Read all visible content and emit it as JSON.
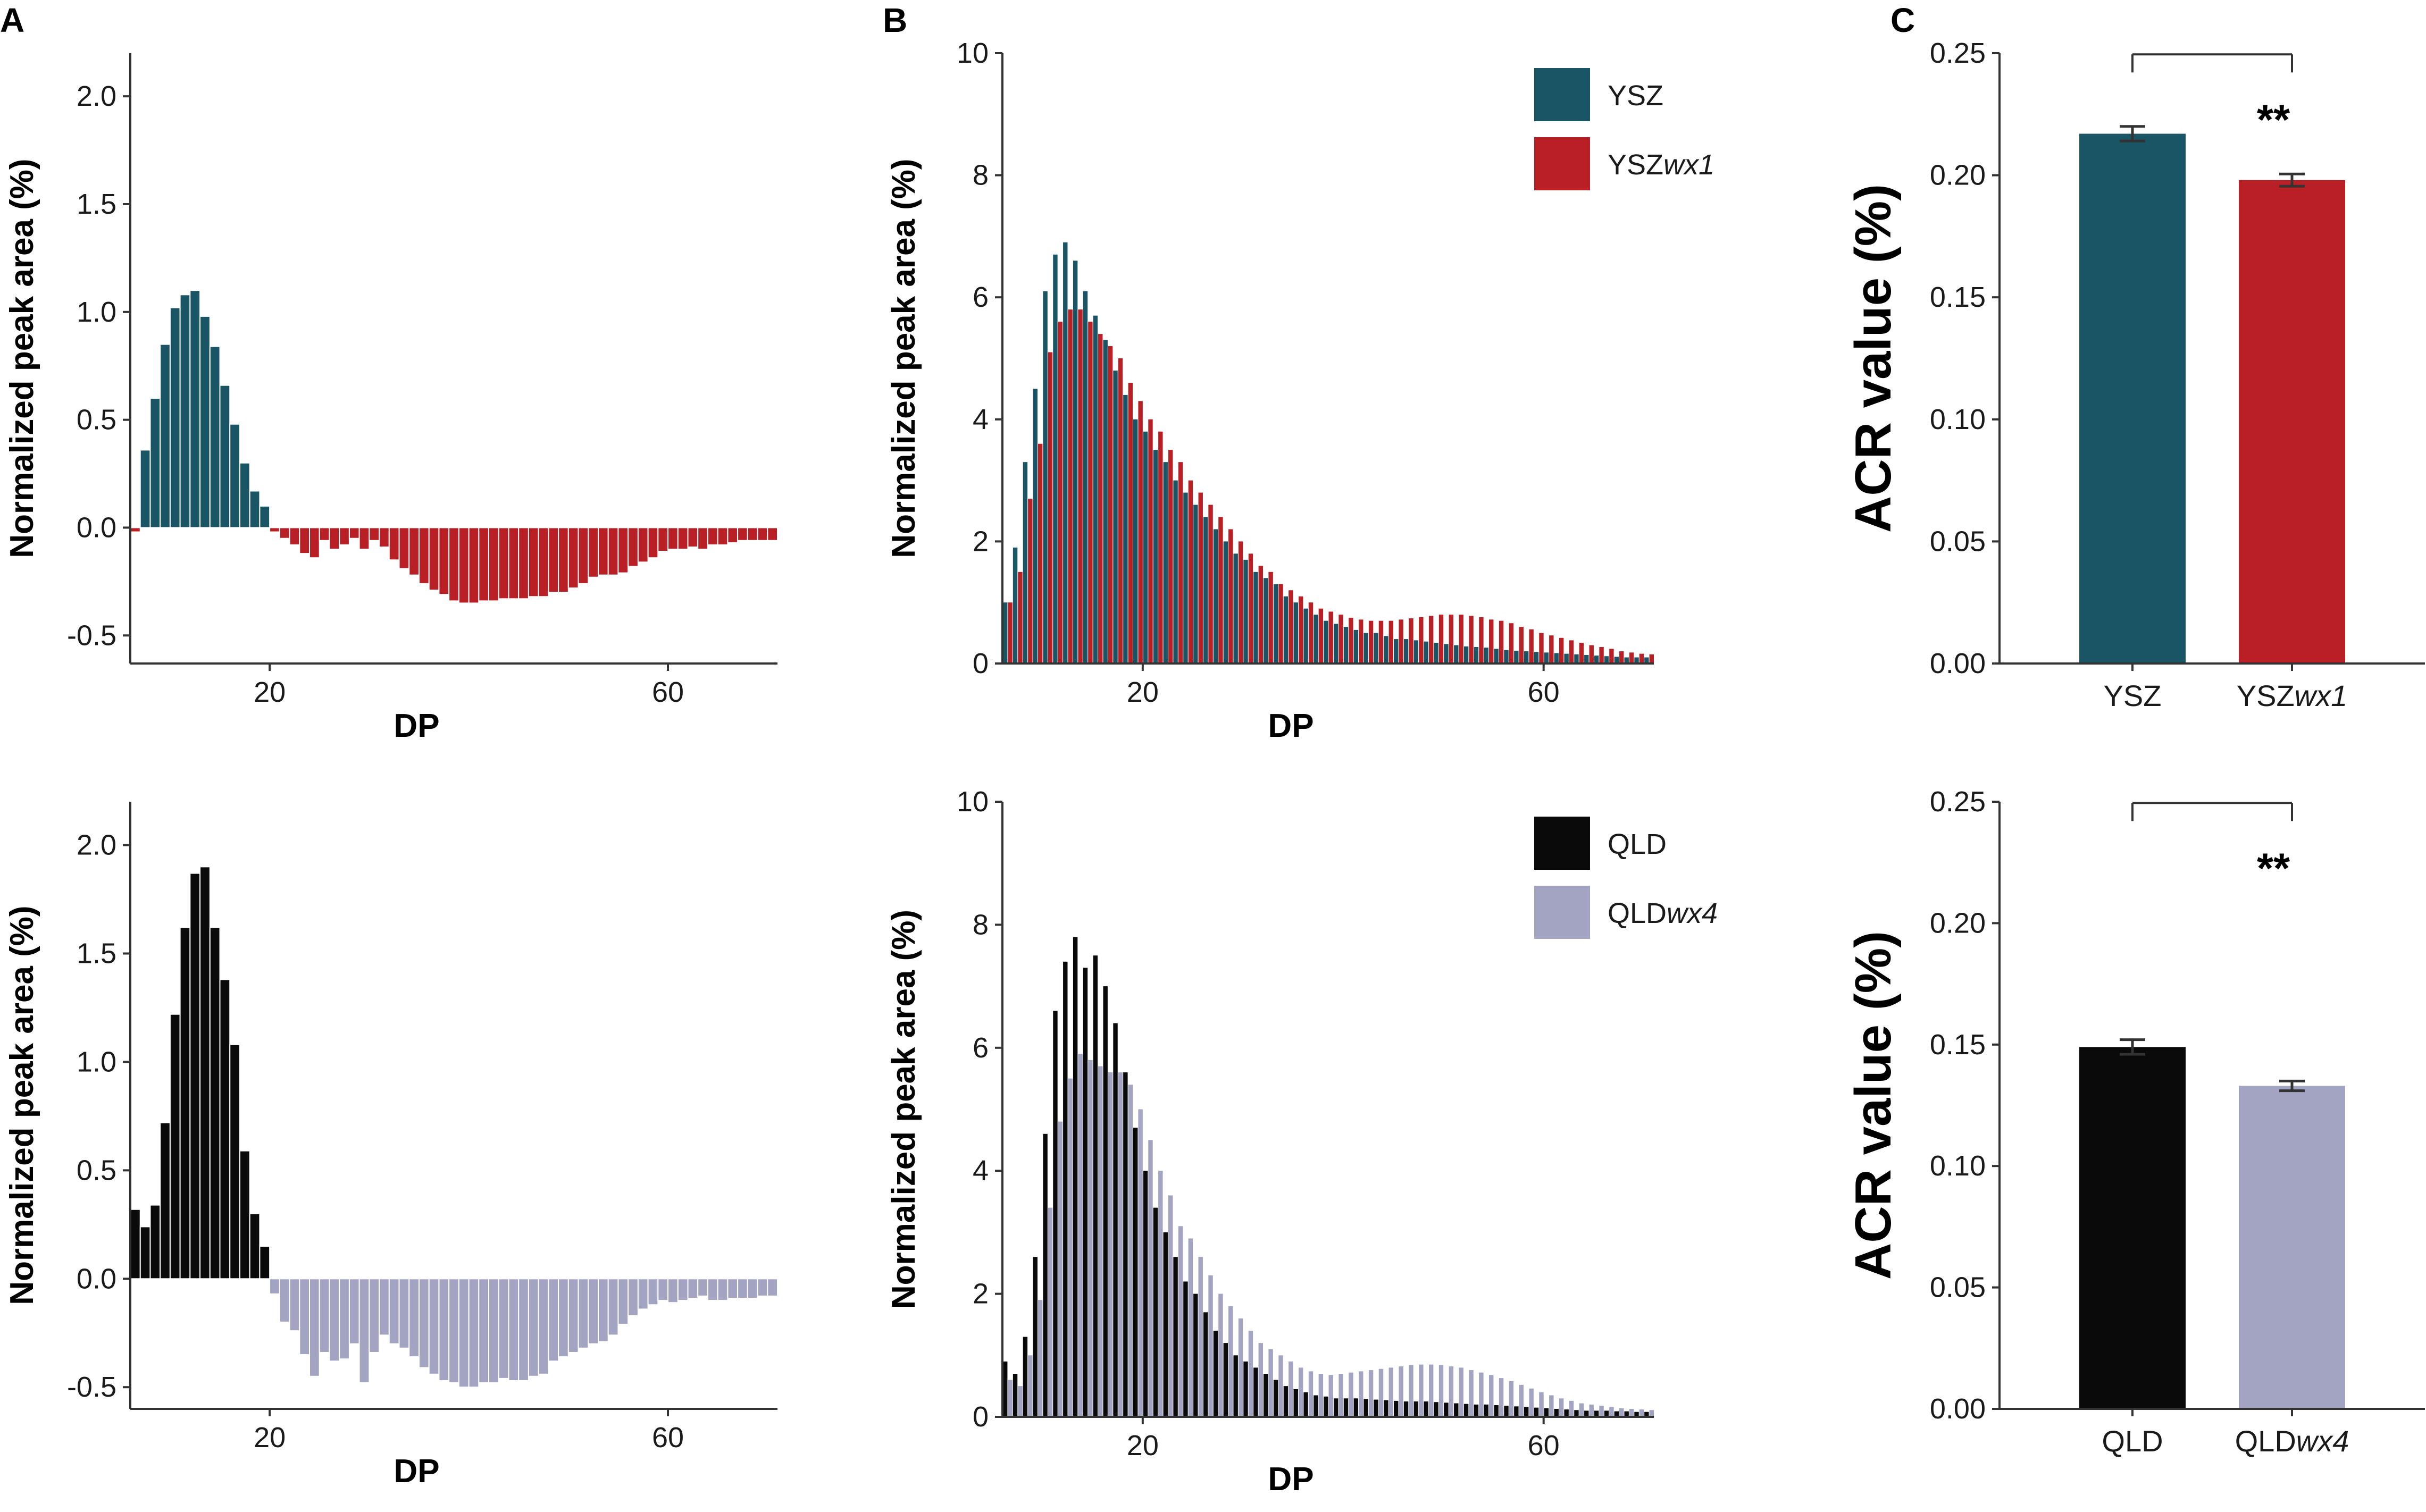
{
  "panels": {
    "a": "A",
    "b": "B",
    "c": "C"
  },
  "colors": {
    "ysz": "#1a5566",
    "yszwx1": "#b82025",
    "qld": "#0a0a0a",
    "qldwx4": "#a3a3c2",
    "axis": "#333333"
  },
  "chart_data": [
    {
      "id": "A-top",
      "type": "bar",
      "title": "",
      "xlabel": "DP",
      "ylabel": "Normalized peak area (%)",
      "xlim": [
        6,
        71
      ],
      "ylim": [
        -0.63,
        2.2
      ],
      "xticks": [
        "20",
        "60"
      ],
      "yticks": [
        "-0.5",
        "0.0",
        "0.5",
        "1.0",
        "1.5",
        "2.0"
      ],
      "x_start": 6,
      "values": [
        -0.02,
        0.36,
        0.6,
        0.85,
        1.02,
        1.08,
        1.1,
        0.98,
        0.84,
        0.66,
        0.48,
        0.3,
        0.17,
        0.1,
        -0.02,
        -0.05,
        -0.08,
        -0.12,
        -0.14,
        -0.06,
        -0.1,
        -0.08,
        -0.05,
        -0.1,
        -0.06,
        -0.09,
        -0.15,
        -0.19,
        -0.22,
        -0.26,
        -0.29,
        -0.31,
        -0.34,
        -0.35,
        -0.35,
        -0.34,
        -0.34,
        -0.33,
        -0.33,
        -0.33,
        -0.32,
        -0.32,
        -0.3,
        -0.3,
        -0.28,
        -0.26,
        -0.23,
        -0.22,
        -0.22,
        -0.21,
        -0.18,
        -0.16,
        -0.14,
        -0.11,
        -0.1,
        -0.1,
        -0.09,
        -0.1,
        -0.08,
        -0.08,
        -0.07,
        -0.06,
        -0.06,
        -0.06,
        -0.06
      ],
      "pos_color": "#1a5566",
      "neg_color": "#b82025"
    },
    {
      "id": "A-bottom",
      "type": "bar",
      "title": "",
      "xlabel": "DP",
      "ylabel": "Normalized peak area (%)",
      "xlim": [
        6,
        71
      ],
      "ylim": [
        -0.6,
        2.2
      ],
      "xticks": [
        "20",
        "60"
      ],
      "yticks": [
        "-0.5",
        "0.0",
        "0.5",
        "1.0",
        "1.5",
        "2.0"
      ],
      "x_start": 6,
      "values": [
        0.32,
        0.24,
        0.34,
        0.72,
        1.22,
        1.62,
        1.87,
        1.9,
        1.62,
        1.38,
        1.08,
        0.59,
        0.3,
        0.15,
        -0.07,
        -0.2,
        -0.24,
        -0.35,
        -0.45,
        -0.34,
        -0.38,
        -0.37,
        -0.3,
        -0.48,
        -0.34,
        -0.26,
        -0.3,
        -0.32,
        -0.36,
        -0.41,
        -0.44,
        -0.47,
        -0.48,
        -0.5,
        -0.5,
        -0.48,
        -0.48,
        -0.46,
        -0.47,
        -0.47,
        -0.45,
        -0.44,
        -0.38,
        -0.36,
        -0.34,
        -0.32,
        -0.3,
        -0.29,
        -0.26,
        -0.21,
        -0.17,
        -0.14,
        -0.12,
        -0.1,
        -0.11,
        -0.1,
        -0.09,
        -0.08,
        -0.1,
        -0.1,
        -0.09,
        -0.09,
        -0.09,
        -0.08,
        -0.08
      ],
      "pos_color": "#0a0a0a",
      "neg_color": "#a3a3c2"
    },
    {
      "id": "B-top",
      "type": "bar",
      "title": "",
      "xlabel": "DP",
      "ylabel": "Normalized peak area (%)",
      "xlim": [
        6,
        71
      ],
      "ylim": [
        0,
        10
      ],
      "xticks": [
        "20",
        "60"
      ],
      "yticks": [
        "0",
        "2",
        "4",
        "6",
        "8",
        "10"
      ],
      "x_start": 6,
      "legend": [
        "YSZ",
        "YSZwx1"
      ],
      "series": [
        {
          "name": "YSZ",
          "color": "#1a5566",
          "values": [
            1.0,
            1.9,
            3.3,
            4.5,
            6.1,
            6.7,
            6.9,
            6.6,
            6.1,
            5.7,
            5.3,
            4.8,
            4.4,
            4.0,
            3.8,
            3.5,
            3.3,
            3.0,
            2.8,
            2.6,
            2.4,
            2.2,
            2.0,
            1.8,
            1.7,
            1.5,
            1.4,
            1.3,
            1.1,
            1.0,
            0.9,
            0.8,
            0.7,
            0.65,
            0.6,
            0.55,
            0.5,
            0.5,
            0.45,
            0.4,
            0.4,
            0.38,
            0.36,
            0.34,
            0.32,
            0.3,
            0.28,
            0.27,
            0.26,
            0.24,
            0.22,
            0.21,
            0.2,
            0.19,
            0.18,
            0.17,
            0.16,
            0.15,
            0.14,
            0.13,
            0.12,
            0.11,
            0.1,
            0.1,
            0.1
          ]
        },
        {
          "name": "YSZwx1",
          "color": "#b82025",
          "values": [
            1.0,
            1.5,
            2.7,
            3.6,
            5.1,
            5.6,
            5.8,
            5.8,
            5.6,
            5.4,
            5.2,
            5.0,
            4.6,
            4.3,
            4.0,
            3.8,
            3.5,
            3.3,
            3.0,
            2.8,
            2.6,
            2.4,
            2.2,
            2.0,
            1.8,
            1.6,
            1.5,
            1.3,
            1.2,
            1.1,
            1.0,
            0.9,
            0.85,
            0.8,
            0.75,
            0.72,
            0.7,
            0.7,
            0.7,
            0.72,
            0.74,
            0.76,
            0.78,
            0.8,
            0.8,
            0.8,
            0.78,
            0.76,
            0.72,
            0.7,
            0.66,
            0.6,
            0.56,
            0.5,
            0.46,
            0.42,
            0.38,
            0.34,
            0.3,
            0.27,
            0.24,
            0.2,
            0.18,
            0.16,
            0.15
          ]
        }
      ]
    },
    {
      "id": "B-bottom",
      "type": "bar",
      "title": "",
      "xlabel": "DP",
      "ylabel": "Normalized peak area (%)",
      "xlim": [
        6,
        71
      ],
      "ylim": [
        0,
        10
      ],
      "xticks": [
        "20",
        "60"
      ],
      "yticks": [
        "0",
        "2",
        "4",
        "6",
        "8",
        "10"
      ],
      "x_start": 6,
      "legend": [
        "QLD",
        "QLDwx4"
      ],
      "series": [
        {
          "name": "QLD",
          "color": "#0a0a0a",
          "values": [
            0.9,
            0.7,
            1.3,
            2.6,
            4.6,
            6.6,
            7.4,
            7.8,
            7.3,
            7.5,
            7.0,
            6.4,
            5.6,
            4.7,
            4.0,
            3.4,
            3.0,
            2.6,
            2.2,
            2.0,
            1.7,
            1.4,
            1.2,
            1.0,
            0.9,
            0.8,
            0.7,
            0.6,
            0.5,
            0.45,
            0.4,
            0.35,
            0.33,
            0.3,
            0.3,
            0.3,
            0.29,
            0.28,
            0.27,
            0.26,
            0.25,
            0.25,
            0.25,
            0.24,
            0.23,
            0.22,
            0.21,
            0.2,
            0.2,
            0.19,
            0.18,
            0.17,
            0.16,
            0.15,
            0.14,
            0.13,
            0.12,
            0.11,
            0.1,
            0.1,
            0.1,
            0.09,
            0.09,
            0.08,
            0.08
          ]
        },
        {
          "name": "QLDwx4",
          "color": "#a3a3c2",
          "values": [
            0.6,
            0.5,
            1.0,
            1.9,
            3.4,
            4.8,
            5.5,
            5.9,
            5.8,
            5.7,
            5.6,
            5.6,
            5.4,
            5.0,
            4.5,
            4.0,
            3.6,
            3.1,
            2.9,
            2.6,
            2.3,
            2.0,
            1.8,
            1.6,
            1.4,
            1.2,
            1.1,
            1.0,
            0.9,
            0.8,
            0.74,
            0.7,
            0.68,
            0.7,
            0.72,
            0.74,
            0.76,
            0.78,
            0.8,
            0.82,
            0.84,
            0.85,
            0.85,
            0.84,
            0.82,
            0.8,
            0.76,
            0.72,
            0.68,
            0.63,
            0.58,
            0.52,
            0.46,
            0.4,
            0.35,
            0.3,
            0.26,
            0.22,
            0.2,
            0.18,
            0.16,
            0.14,
            0.13,
            0.12,
            0.11
          ]
        }
      ]
    },
    {
      "id": "C-top",
      "type": "bar",
      "title": "",
      "xlabel": "",
      "ylabel": "ACR value (%)",
      "ylim": [
        0,
        0.25
      ],
      "yticks": [
        "0.00",
        "0.05",
        "0.10",
        "0.15",
        "0.20",
        "0.25"
      ],
      "categories": [
        {
          "base": "YSZ",
          "ital": ""
        },
        {
          "base": "YSZ",
          "ital": "wx1"
        }
      ],
      "values": [
        0.217,
        0.198
      ],
      "errors": [
        0.003,
        0.0025
      ],
      "colors": [
        "#1a5566",
        "#b82025"
      ],
      "significance": "**"
    },
    {
      "id": "C-bottom",
      "type": "bar",
      "title": "",
      "xlabel": "",
      "ylabel": "ACR value (%)",
      "ylim": [
        0,
        0.25
      ],
      "yticks": [
        "0.00",
        "0.05",
        "0.10",
        "0.15",
        "0.20",
        "0.25"
      ],
      "categories": [
        {
          "base": "QLD",
          "ital": ""
        },
        {
          "base": "QLD",
          "ital": "wx4"
        }
      ],
      "values": [
        0.149,
        0.133
      ],
      "errors": [
        0.003,
        0.002
      ],
      "colors": [
        "#0a0a0a",
        "#a3a3c2"
      ],
      "significance": "**"
    }
  ]
}
